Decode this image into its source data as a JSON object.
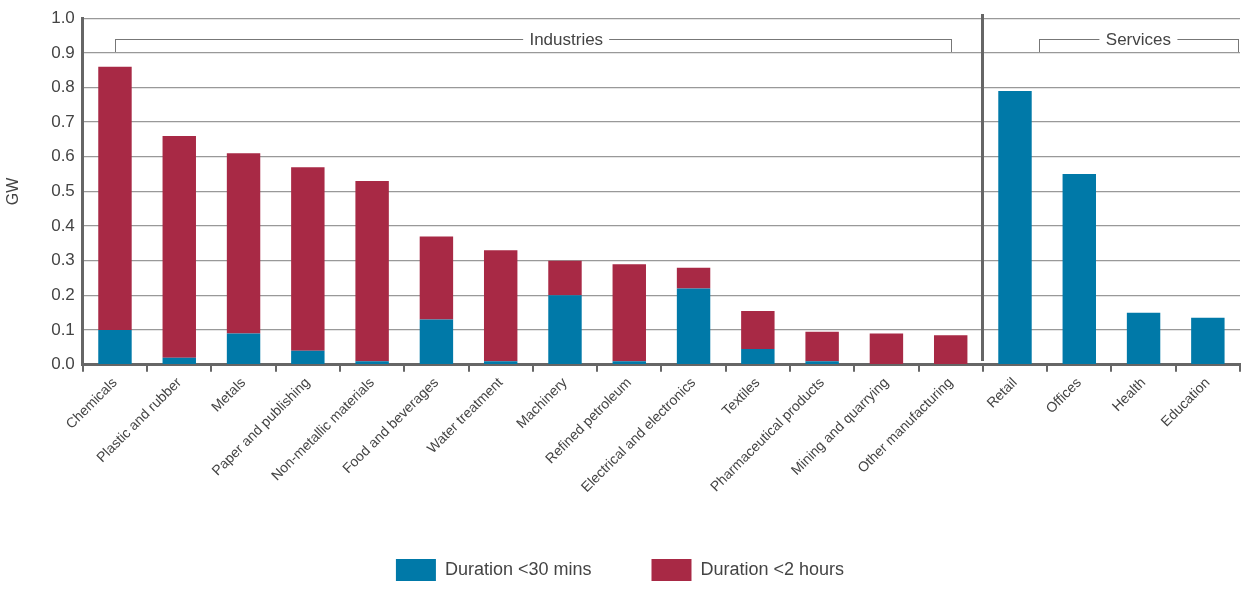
{
  "chart_data": {
    "type": "bar",
    "stacked": true,
    "ylabel": "GW",
    "categories": [
      "Chemicals",
      "Plastic and rubber",
      "Metals",
      "Paper and publishing",
      "Non-metallic materials",
      "Food and beverages",
      "Water treatment",
      "Machinery",
      "Refined petroleum",
      "Electrical and electronics",
      "Textiles",
      "Pharmaceutical products",
      "Mining and quarrying",
      "Other manufacturing",
      "Retail",
      "Offices",
      "Health",
      "Education"
    ],
    "series": [
      {
        "name": "Duration <30 mins",
        "color": "#0079a8",
        "values": [
          0.1,
          0.02,
          0.09,
          0.04,
          0.01,
          0.13,
          0.01,
          0.2,
          0.01,
          0.22,
          0.045,
          0.01,
          0,
          0,
          0.79,
          0.55,
          0.15,
          0.135
        ]
      },
      {
        "name": "Duration <2 hours",
        "color": "#a82945",
        "values": [
          0.76,
          0.64,
          0.52,
          0.53,
          0.52,
          0.24,
          0.32,
          0.1,
          0.28,
          0.06,
          0.11,
          0.085,
          0.09,
          0.085,
          0,
          0,
          0,
          0
        ]
      }
    ],
    "ylim": [
      0,
      1
    ],
    "yticks": [
      "0.0",
      0.1,
      0.2,
      0.3,
      0.4,
      0.5,
      0.6,
      0.7,
      0.8,
      0.9,
      "1.0"
    ],
    "grid": "y",
    "legend": "bottom",
    "annotations": [
      "Industries",
      "Services"
    ]
  }
}
